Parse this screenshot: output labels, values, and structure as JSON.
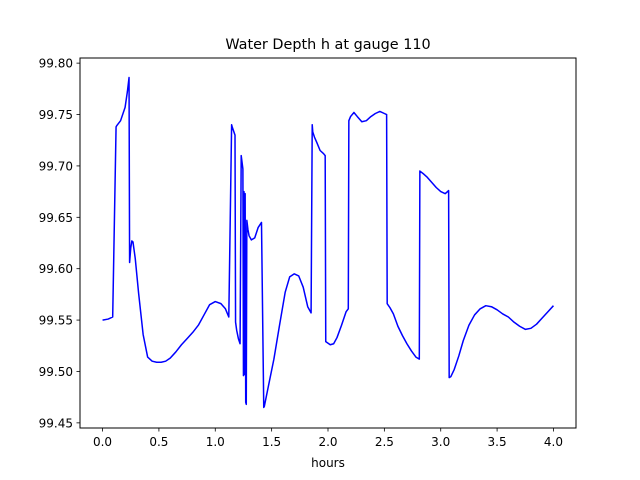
{
  "chart_data": {
    "type": "line",
    "title": "Water Depth h at gauge 110",
    "xlabel": "hours",
    "ylabel": "",
    "xlim": [
      -0.2,
      4.2
    ],
    "ylim": [
      99.445,
      99.805
    ],
    "xticks": [
      0.0,
      0.5,
      1.0,
      1.5,
      2.0,
      2.5,
      3.0,
      3.5,
      4.0
    ],
    "xtick_labels": [
      "0.0",
      "0.5",
      "1.0",
      "1.5",
      "2.0",
      "2.5",
      "3.0",
      "3.5",
      "4.0"
    ],
    "yticks": [
      99.45,
      99.5,
      99.55,
      99.6,
      99.65,
      99.7,
      99.75,
      99.8
    ],
    "ytick_labels": [
      "99.45",
      "99.50",
      "99.55",
      "99.60",
      "99.65",
      "99.70",
      "99.75",
      "99.80"
    ],
    "grid": false,
    "legend": false,
    "series": [
      {
        "color": "#0000ff",
        "x": [
          0.0,
          0.05,
          0.09,
          0.12,
          0.125,
          0.16,
          0.2,
          0.22,
          0.235,
          0.24,
          0.25,
          0.26,
          0.27,
          0.29,
          0.32,
          0.36,
          0.4,
          0.44,
          0.48,
          0.52,
          0.56,
          0.6,
          0.65,
          0.7,
          0.75,
          0.8,
          0.85,
          0.9,
          0.95,
          1.0,
          1.05,
          1.09,
          1.12,
          1.145,
          1.15,
          1.175,
          1.18,
          1.19,
          1.205,
          1.22,
          1.23,
          1.245,
          1.25,
          1.255,
          1.26,
          1.265,
          1.27,
          1.275,
          1.28,
          1.29,
          1.3,
          1.32,
          1.35,
          1.38,
          1.41,
          1.43,
          1.435,
          1.47,
          1.52,
          1.57,
          1.62,
          1.66,
          1.7,
          1.74,
          1.78,
          1.82,
          1.85,
          1.86,
          1.865,
          1.88,
          1.9,
          1.93,
          1.96,
          1.975,
          1.98,
          2.02,
          2.05,
          2.08,
          2.12,
          2.16,
          2.18,
          2.185,
          2.2,
          2.23,
          2.26,
          2.3,
          2.34,
          2.38,
          2.42,
          2.46,
          2.5,
          2.52,
          2.525,
          2.55,
          2.58,
          2.62,
          2.66,
          2.7,
          2.74,
          2.78,
          2.81,
          2.815,
          2.85,
          2.88,
          2.92,
          2.96,
          3.0,
          3.04,
          3.07,
          3.075,
          3.09,
          3.12,
          3.16,
          3.2,
          3.25,
          3.3,
          3.35,
          3.4,
          3.45,
          3.5,
          3.55,
          3.6,
          3.65,
          3.7,
          3.75,
          3.8,
          3.85,
          3.9,
          3.95,
          4.0
        ],
        "y": [
          99.55,
          99.551,
          99.553,
          99.738,
          99.739,
          99.744,
          99.757,
          99.772,
          99.786,
          99.606,
          99.62,
          99.627,
          99.626,
          99.61,
          99.576,
          99.536,
          99.514,
          99.51,
          99.509,
          99.509,
          99.51,
          99.513,
          99.519,
          99.526,
          99.532,
          99.538,
          99.545,
          99.555,
          99.565,
          99.568,
          99.566,
          99.561,
          99.553,
          99.74,
          99.738,
          99.73,
          99.548,
          99.54,
          99.532,
          99.527,
          99.71,
          99.697,
          99.496,
          99.675,
          99.497,
          99.673,
          99.47,
          99.468,
          99.647,
          99.638,
          99.632,
          99.628,
          99.63,
          99.64,
          99.645,
          99.465,
          99.466,
          99.485,
          99.512,
          99.545,
          99.577,
          99.592,
          99.595,
          99.593,
          99.582,
          99.563,
          99.557,
          99.74,
          99.733,
          99.728,
          99.723,
          99.715,
          99.712,
          99.71,
          99.529,
          99.526,
          99.527,
          99.533,
          99.545,
          99.558,
          99.561,
          99.744,
          99.748,
          99.752,
          99.748,
          99.743,
          99.744,
          99.748,
          99.751,
          99.753,
          99.751,
          99.75,
          99.566,
          99.562,
          99.556,
          99.544,
          99.535,
          99.527,
          99.52,
          99.514,
          99.512,
          99.695,
          99.692,
          99.689,
          99.684,
          99.679,
          99.675,
          99.673,
          99.676,
          99.494,
          99.495,
          99.502,
          99.515,
          99.53,
          99.545,
          99.555,
          99.561,
          99.564,
          99.563,
          99.56,
          99.556,
          99.553,
          99.548,
          99.544,
          99.541,
          99.542,
          99.546,
          99.552,
          99.558,
          99.564
        ]
      }
    ]
  }
}
